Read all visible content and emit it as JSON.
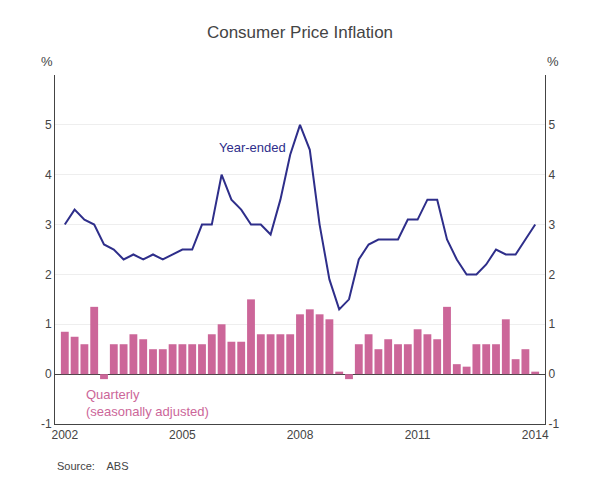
{
  "chart_data": {
    "type": "bar",
    "title": "Consumer Price Inflation",
    "source": "Source:    ABS",
    "ylabel": "%",
    "y2label": "%",
    "x": [
      2002.0,
      2002.25,
      2002.5,
      2002.75,
      2003.0,
      2003.25,
      2003.5,
      2003.75,
      2004.0,
      2004.25,
      2004.5,
      2004.75,
      2005.0,
      2005.25,
      2005.5,
      2005.75,
      2006.0,
      2006.25,
      2006.5,
      2006.75,
      2007.0,
      2007.25,
      2007.5,
      2007.75,
      2008.0,
      2008.25,
      2008.5,
      2008.75,
      2009.0,
      2009.25,
      2009.5,
      2009.75,
      2010.0,
      2010.25,
      2010.5,
      2010.75,
      2011.0,
      2011.25,
      2011.5,
      2011.75,
      2012.0,
      2012.25,
      2012.5,
      2012.75,
      2013.0,
      2013.25,
      2013.5,
      2013.75,
      2014.0
    ],
    "series": [
      {
        "name": "Quarterly\n(seasonally adjusted)",
        "type": "bar",
        "color": "#cc6699",
        "values": [
          0.85,
          0.75,
          0.6,
          1.35,
          -0.1,
          0.6,
          0.6,
          0.8,
          0.7,
          0.5,
          0.5,
          0.6,
          0.6,
          0.6,
          0.6,
          0.8,
          1.0,
          0.65,
          0.65,
          1.5,
          0.8,
          0.8,
          0.8,
          0.8,
          1.2,
          1.3,
          1.2,
          1.1,
          0.05,
          -0.1,
          0.6,
          0.8,
          0.5,
          0.7,
          0.6,
          0.6,
          0.9,
          0.8,
          0.7,
          1.35,
          0.2,
          0.15,
          0.6,
          0.6,
          0.6,
          1.1,
          0.3,
          0.5,
          0.05
        ]
      },
      {
        "name": "Year-ended",
        "type": "line",
        "color": "#2e2e8a",
        "values": [
          3.0,
          3.3,
          3.1,
          3.0,
          2.6,
          2.5,
          2.3,
          2.4,
          2.3,
          2.4,
          2.3,
          2.4,
          2.5,
          2.5,
          3.0,
          3.0,
          4.0,
          3.5,
          3.3,
          3.0,
          3.0,
          2.8,
          3.5,
          4.4,
          5.0,
          4.5,
          3.0,
          1.9,
          1.3,
          1.5,
          2.3,
          2.6,
          2.7,
          2.7,
          2.7,
          3.1,
          3.1,
          3.5,
          3.5,
          2.7,
          2.3,
          2.0,
          2.0,
          2.2,
          2.5,
          2.4,
          2.4,
          2.7,
          3.0
        ]
      }
    ],
    "xlim": [
      2001.75,
      2014.25
    ],
    "xticks": [
      2002,
      2005,
      2008,
      2011,
      2014
    ],
    "ylim": [
      -1,
      6
    ],
    "yticks": [
      -1,
      0,
      1,
      2,
      3,
      4,
      5
    ],
    "y2lim": [
      -1,
      6
    ],
    "y2ticks": [
      -1,
      0,
      1,
      2,
      3,
      4,
      5
    ],
    "grid": true
  }
}
